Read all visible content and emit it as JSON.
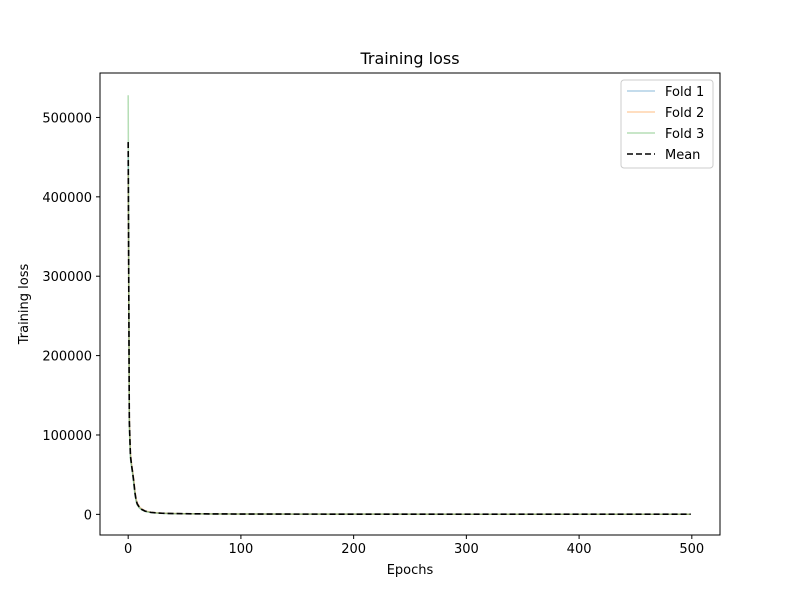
{
  "chart_data": {
    "type": "line",
    "title": "Training loss",
    "xlabel": "Epochs",
    "ylabel": "Training loss",
    "xlim": [
      -25,
      525
    ],
    "ylim": [
      -26000,
      556000
    ],
    "x_ticks": [
      0,
      100,
      200,
      300,
      400,
      500
    ],
    "y_ticks": [
      0,
      100000,
      200000,
      300000,
      400000,
      500000
    ],
    "grid": false,
    "legend_position": "upper right",
    "series": [
      {
        "name": "Fold 1",
        "color": "#1f77b4",
        "style": "solid",
        "alpha": 0.35,
        "x": [
          0,
          1,
          2,
          3,
          4,
          5,
          6,
          7,
          8,
          10,
          12,
          15,
          20,
          25,
          30,
          40,
          50,
          75,
          100,
          150,
          200,
          300,
          400,
          499
        ],
        "y": [
          450000,
          120000,
          75000,
          62000,
          52000,
          40000,
          27000,
          18000,
          13000,
          8500,
          6000,
          4000,
          2400,
          1800,
          1400,
          1000,
          800,
          550,
          420,
          300,
          250,
          200,
          180,
          160
        ]
      },
      {
        "name": "Fold 2",
        "color": "#ff7f0e",
        "style": "solid",
        "alpha": 0.35,
        "x": [
          0,
          1,
          2,
          3,
          4,
          5,
          6,
          7,
          8,
          10,
          12,
          15,
          20,
          25,
          30,
          40,
          50,
          75,
          100,
          150,
          200,
          300,
          400,
          499
        ],
        "y": [
          430000,
          125000,
          78000,
          64000,
          54000,
          44000,
          30000,
          20000,
          15000,
          9500,
          7000,
          4500,
          2700,
          2000,
          1500,
          1100,
          850,
          580,
          440,
          320,
          260,
          210,
          190,
          170
        ]
      },
      {
        "name": "Fold 3",
        "color": "#2ca02c",
        "style": "solid",
        "alpha": 0.35,
        "x": [
          0,
          1,
          2,
          3,
          4,
          5,
          6,
          7,
          8,
          10,
          12,
          15,
          20,
          25,
          30,
          40,
          50,
          75,
          100,
          150,
          200,
          300,
          400,
          499
        ],
        "y": [
          528000,
          110000,
          70000,
          60000,
          50000,
          38000,
          25000,
          17000,
          12000,
          8000,
          5800,
          3800,
          2300,
          1700,
          1300,
          950,
          760,
          520,
          400,
          290,
          240,
          195,
          175,
          155
        ]
      },
      {
        "name": "Mean",
        "color": "#000000",
        "style": "dashed",
        "alpha": 1,
        "x": [
          0,
          1,
          2,
          3,
          4,
          5,
          6,
          7,
          8,
          10,
          12,
          15,
          20,
          25,
          30,
          40,
          50,
          75,
          100,
          150,
          200,
          300,
          400,
          499
        ],
        "y": [
          469000,
          118000,
          74000,
          62000,
          52000,
          40700,
          27300,
          18300,
          13300,
          8700,
          6300,
          4100,
          2500,
          1850,
          1400,
          1020,
          800,
          550,
          420,
          300,
          250,
          200,
          180,
          160
        ]
      }
    ]
  }
}
